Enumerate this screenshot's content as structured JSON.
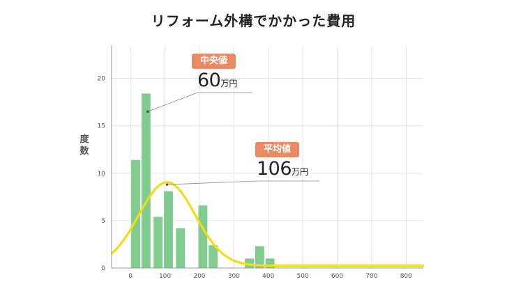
{
  "chart_data": {
    "type": "bar",
    "title": "リフォーム外構でかかった費用",
    "ylabel": "度数",
    "xlabel": "",
    "x_ticks": [
      "0",
      "100",
      "200",
      "300",
      "400",
      "500",
      "600",
      "700",
      "800"
    ],
    "y_ticks": [
      "0",
      "5",
      "10",
      "15",
      "20"
    ],
    "xlim": [
      -55,
      850
    ],
    "ylim": [
      0,
      23.5
    ],
    "grid": true,
    "bar_width": 30,
    "bars": [
      {
        "x": 15,
        "value": 11.4
      },
      {
        "x": 45,
        "value": 18.4
      },
      {
        "x": 80,
        "value": 5.4
      },
      {
        "x": 110,
        "value": 8.1
      },
      {
        "x": 145,
        "value": 4.2
      },
      {
        "x": 210,
        "value": 6.6
      },
      {
        "x": 240,
        "value": 2.4
      },
      {
        "x": 345,
        "value": 1.0
      },
      {
        "x": 375,
        "value": 2.3
      },
      {
        "x": 405,
        "value": 1.0
      }
    ],
    "curve": {
      "mean": 106,
      "sd": 82,
      "peak": 8.8,
      "color": "#f2dc14"
    },
    "bar_color": "#80cc8f",
    "annotations": [
      {
        "badge": "中央値",
        "value": "60",
        "unit": "万円",
        "point": {
          "x": 50,
          "y": 16.5
        }
      },
      {
        "badge": "平均値",
        "value": "106",
        "unit": "万円",
        "point": {
          "x": 106,
          "y": 8.8
        }
      }
    ],
    "badge_color": "#ea8a62"
  }
}
